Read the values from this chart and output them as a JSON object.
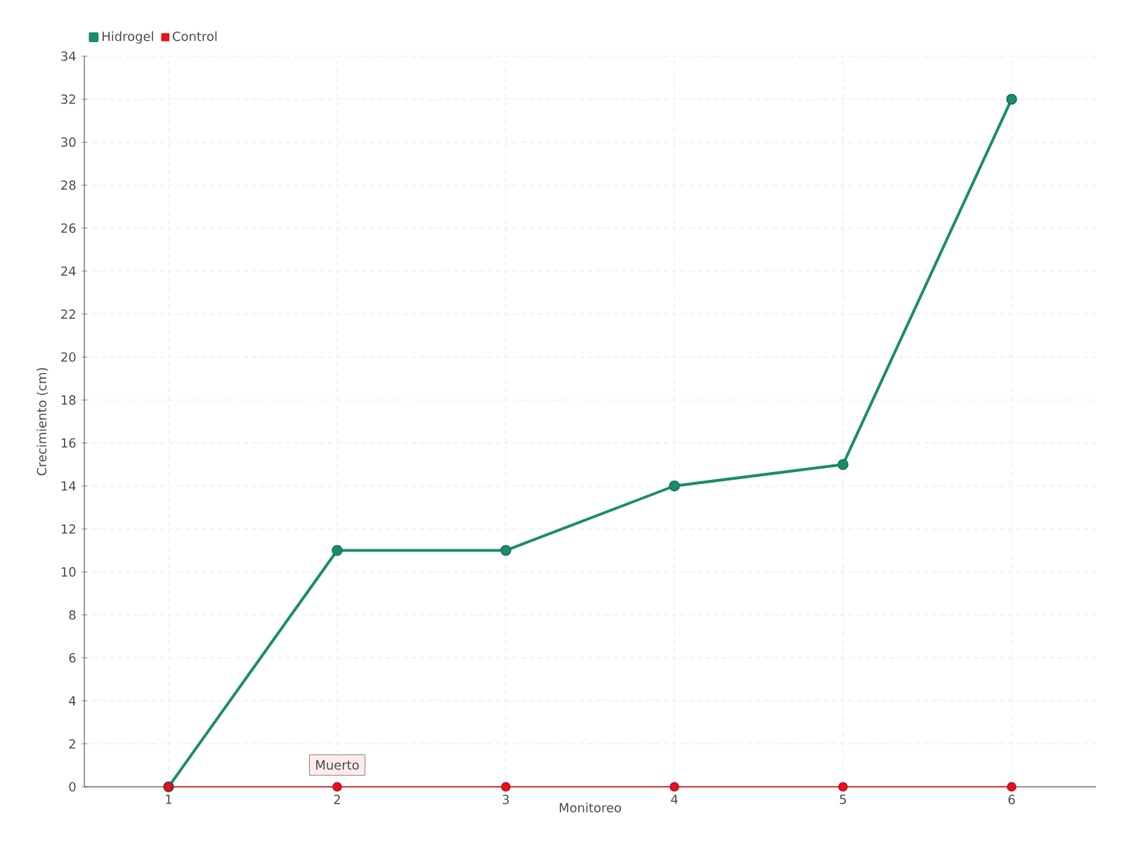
{
  "chart_data": {
    "type": "line",
    "xlabel": "Monitoreo",
    "ylabel": "Crecimiento (cm)",
    "categories": [
      "1",
      "2",
      "3",
      "4",
      "5",
      "6"
    ],
    "series": [
      {
        "name": "Hidrogel",
        "color": "#1a8c6e",
        "values": [
          0,
          11,
          11,
          14,
          15,
          32
        ]
      },
      {
        "name": "Control",
        "color": "#e8101e",
        "values": [
          0,
          0,
          0,
          0,
          0,
          0
        ]
      }
    ],
    "ylim": [
      0,
      34
    ],
    "yticks": [
      0,
      2,
      4,
      6,
      8,
      10,
      12,
      14,
      16,
      18,
      20,
      22,
      24,
      26,
      28,
      30,
      32,
      34
    ],
    "annotations": [
      {
        "text": "Muerto",
        "x": "2",
        "y": 0
      }
    ],
    "grid": true,
    "legend": "top left",
    "marker": "circle",
    "line_style": "solid"
  }
}
